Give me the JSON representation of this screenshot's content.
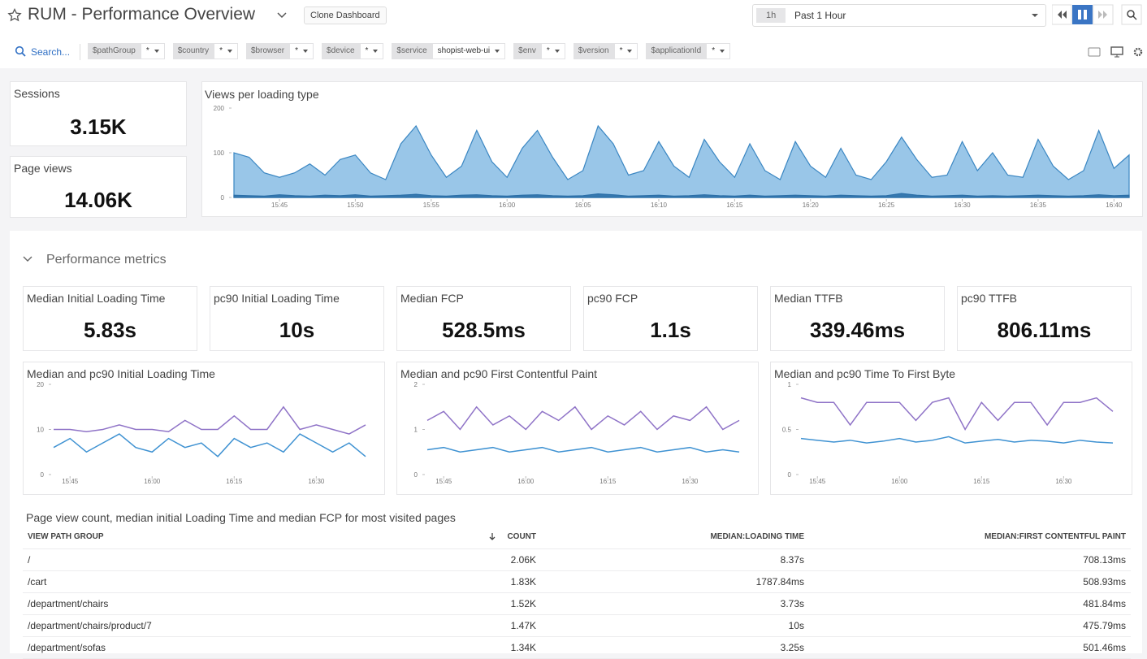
{
  "header": {
    "title": "RUM - Performance Overview",
    "clone_button": "Clone Dashboard",
    "time_badge": "1h",
    "time_range": "Past 1 Hour"
  },
  "filters": {
    "search": "Search...",
    "variables": [
      {
        "name": "$pathGroup",
        "value": "*"
      },
      {
        "name": "$country",
        "value": "*"
      },
      {
        "name": "$browser",
        "value": "*"
      },
      {
        "name": "$device",
        "value": "*"
      },
      {
        "name": "$service",
        "value": "shopist-web-ui"
      },
      {
        "name": "$env",
        "value": "*"
      },
      {
        "name": "$version",
        "value": "*"
      },
      {
        "name": "$applicationId",
        "value": "*"
      }
    ]
  },
  "widgets": [
    {
      "title": "Sessions",
      "value": "3.15K"
    },
    {
      "title": "Page views",
      "value": "14.06K"
    }
  ],
  "section": {
    "title": "Performance metrics"
  },
  "kpis": [
    {
      "title": "Median Initial Loading Time",
      "value": "5.83s"
    },
    {
      "title": "pc90 Initial Loading Time",
      "value": "10s"
    },
    {
      "title": "Median FCP",
      "value": "528.5ms"
    },
    {
      "title": "pc90 FCP",
      "value": "1.1s"
    },
    {
      "title": "Median TTFB",
      "value": "339.46ms"
    },
    {
      "title": "pc90 TTFB",
      "value": "806.11ms"
    }
  ],
  "chart_data": [
    {
      "type": "area",
      "title": "Views per loading type",
      "x": [
        "15:42",
        "15:43",
        "15:44",
        "15:45",
        "15:46",
        "15:47",
        "15:48",
        "15:49",
        "15:50",
        "15:51",
        "15:52",
        "15:53",
        "15:54",
        "15:55",
        "15:56",
        "15:57",
        "15:58",
        "15:59",
        "16:00",
        "16:01",
        "16:02",
        "16:03",
        "16:04",
        "16:05",
        "16:06",
        "16:07",
        "16:08",
        "16:09",
        "16:10",
        "16:11",
        "16:12",
        "16:13",
        "16:14",
        "16:15",
        "16:16",
        "16:17",
        "16:18",
        "16:19",
        "16:20",
        "16:21",
        "16:22",
        "16:23",
        "16:24",
        "16:25",
        "16:26",
        "16:27",
        "16:28",
        "16:29",
        "16:30",
        "16:31",
        "16:32",
        "16:33",
        "16:34",
        "16:35",
        "16:36",
        "16:37",
        "16:38",
        "16:39",
        "16:40",
        "16:41"
      ],
      "xticks": [
        "15:45",
        "15:50",
        "15:55",
        "16:00",
        "16:05",
        "16:10",
        "16:15",
        "16:20",
        "16:25",
        "16:30",
        "16:35",
        "16:40"
      ],
      "ylim": [
        0,
        200
      ],
      "yticks": [
        0,
        100,
        200
      ],
      "series": [
        {
          "color": "#8ec0e6",
          "values": [
            100,
            90,
            55,
            45,
            55,
            75,
            50,
            85,
            95,
            55,
            40,
            120,
            160,
            95,
            45,
            70,
            150,
            80,
            45,
            110,
            150,
            90,
            40,
            60,
            160,
            120,
            50,
            60,
            125,
            70,
            45,
            130,
            80,
            45,
            120,
            60,
            40,
            125,
            70,
            45,
            110,
            50,
            40,
            80,
            135,
            85,
            45,
            50,
            125,
            60,
            100,
            50,
            45,
            130,
            70,
            40,
            60,
            150,
            65,
            95
          ]
        },
        {
          "color": "#2b6fa8",
          "values": [
            5,
            4,
            3,
            6,
            4,
            3,
            5,
            4,
            6,
            3,
            4,
            5,
            7,
            4,
            3,
            5,
            6,
            4,
            3,
            5,
            6,
            4,
            3,
            4,
            8,
            6,
            3,
            4,
            5,
            3,
            4,
            6,
            4,
            3,
            5,
            3,
            4,
            5,
            4,
            3,
            5,
            4,
            3,
            4,
            9,
            5,
            3,
            4,
            5,
            3,
            4,
            3,
            4,
            5,
            4,
            3,
            4,
            6,
            4,
            5
          ]
        }
      ]
    },
    {
      "type": "line",
      "title": "Median and pc90 Initial Loading Time",
      "x": [
        "15:42",
        "15:45",
        "15:48",
        "15:51",
        "15:54",
        "15:57",
        "16:00",
        "16:03",
        "16:06",
        "16:09",
        "16:12",
        "16:15",
        "16:18",
        "16:21",
        "16:24",
        "16:27",
        "16:30",
        "16:33",
        "16:36",
        "16:39"
      ],
      "xticks": [
        "15:45",
        "16:00",
        "16:15",
        "16:30"
      ],
      "ylim": [
        0,
        20
      ],
      "yticks": [
        0,
        10,
        20
      ],
      "series": [
        {
          "color": "#8f73c7",
          "values": [
            10,
            10,
            9.5,
            10,
            11,
            10,
            10,
            9.5,
            12,
            10,
            10,
            13,
            10,
            10,
            15,
            10,
            11,
            10,
            9,
            11
          ]
        },
        {
          "color": "#3f92d2",
          "values": [
            6,
            8,
            5,
            7,
            9,
            6,
            5,
            8,
            6,
            7,
            4,
            8,
            6,
            7,
            5,
            9,
            7,
            5,
            7,
            4
          ]
        }
      ]
    },
    {
      "type": "line",
      "title": "Median and pc90 First Contentful Paint",
      "x": [
        "15:42",
        "15:45",
        "15:48",
        "15:51",
        "15:54",
        "15:57",
        "16:00",
        "16:03",
        "16:06",
        "16:09",
        "16:12",
        "16:15",
        "16:18",
        "16:21",
        "16:24",
        "16:27",
        "16:30",
        "16:33",
        "16:36",
        "16:39"
      ],
      "xticks": [
        "15:45",
        "16:00",
        "16:15",
        "16:30"
      ],
      "ylim": [
        0,
        2
      ],
      "yticks": [
        0,
        1,
        2
      ],
      "series": [
        {
          "color": "#8f73c7",
          "values": [
            1.2,
            1.4,
            1.0,
            1.5,
            1.1,
            1.3,
            1.0,
            1.4,
            1.2,
            1.5,
            1.0,
            1.3,
            1.1,
            1.4,
            1.0,
            1.3,
            1.2,
            1.5,
            1.0,
            1.2
          ]
        },
        {
          "color": "#3f92d2",
          "values": [
            0.55,
            0.6,
            0.5,
            0.55,
            0.6,
            0.5,
            0.55,
            0.6,
            0.5,
            0.55,
            0.6,
            0.5,
            0.55,
            0.6,
            0.5,
            0.55,
            0.6,
            0.5,
            0.55,
            0.5
          ]
        }
      ]
    },
    {
      "type": "line",
      "title": "Median and pc90 Time To First Byte",
      "x": [
        "15:42",
        "15:45",
        "15:48",
        "15:51",
        "15:54",
        "15:57",
        "16:00",
        "16:03",
        "16:06",
        "16:09",
        "16:12",
        "16:15",
        "16:18",
        "16:21",
        "16:24",
        "16:27",
        "16:30",
        "16:33",
        "16:36",
        "16:39"
      ],
      "xticks": [
        "15:45",
        "16:00",
        "16:15",
        "16:30"
      ],
      "ylim": [
        0,
        1
      ],
      "yticks": [
        0,
        0.5,
        1
      ],
      "series": [
        {
          "color": "#8f73c7",
          "values": [
            0.85,
            0.8,
            0.8,
            0.55,
            0.8,
            0.8,
            0.8,
            0.6,
            0.8,
            0.85,
            0.5,
            0.8,
            0.6,
            0.8,
            0.8,
            0.55,
            0.8,
            0.8,
            0.85,
            0.7
          ]
        },
        {
          "color": "#3f92d2",
          "values": [
            0.4,
            0.38,
            0.36,
            0.38,
            0.35,
            0.37,
            0.4,
            0.36,
            0.38,
            0.42,
            0.35,
            0.37,
            0.39,
            0.36,
            0.38,
            0.37,
            0.35,
            0.38,
            0.36,
            0.35
          ]
        }
      ]
    }
  ],
  "table": {
    "title": "Page view count, median initial Loading Time and median FCP for most visited pages",
    "columns": [
      "VIEW PATH GROUP",
      "COUNT",
      "MEDIAN:LOADING TIME",
      "MEDIAN:FIRST CONTENTFUL PAINT"
    ],
    "rows": [
      [
        "/",
        "2.06K",
        "8.37s",
        "708.13ms"
      ],
      [
        "/cart",
        "1.83K",
        "1787.84ms",
        "508.93ms"
      ],
      [
        "/department/chairs",
        "1.52K",
        "3.73s",
        "481.84ms"
      ],
      [
        "/department/chairs/product/7",
        "1.47K",
        "10s",
        "475.79ms"
      ],
      [
        "/department/sofas",
        "1.34K",
        "3.25s",
        "501.46ms"
      ]
    ]
  }
}
